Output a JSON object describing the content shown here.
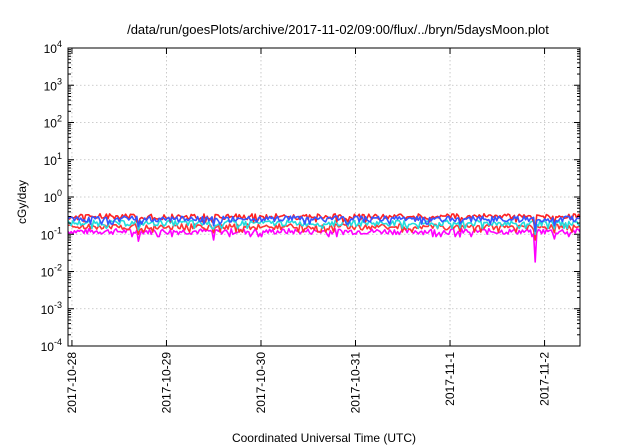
{
  "chart_data": {
    "type": "line",
    "title": "/data/run/goesPlots/archive/2017-11-02/09:00/flux/../bryn/5daysMoon.plot",
    "xlabel": "Coordinated Universal Time (UTC)",
    "ylabel": "cGy/day",
    "yscale": "log",
    "ylim": [
      0.0001,
      10000
    ],
    "yticks": [
      {
        "base": "10",
        "exp": "-4"
      },
      {
        "base": "10",
        "exp": "-3"
      },
      {
        "base": "10",
        "exp": "-2"
      },
      {
        "base": "10",
        "exp": "-1"
      },
      {
        "base": "10",
        "exp": "0"
      },
      {
        "base": "10",
        "exp": "1"
      },
      {
        "base": "10",
        "exp": "2"
      },
      {
        "base": "10",
        "exp": "3"
      },
      {
        "base": "10",
        "exp": "4"
      }
    ],
    "xlim": [
      "2017-10-27T23:00",
      "2017-11-02T09:00"
    ],
    "xticks": [
      "2017-10-28",
      "2017-10-29",
      "2017-10-30",
      "2017-10-31",
      "2017-11-1",
      "2017-11-2"
    ],
    "xtick_days": [
      0,
      1,
      2,
      3,
      4,
      5
    ],
    "grid": true,
    "legend": "none",
    "series": [
      {
        "color": "#ff00ff",
        "level": 0.12,
        "dips": [
          [
            -0.5,
            0.07
          ],
          [
            0.7,
            0.065
          ],
          [
            1.5,
            0.07
          ],
          [
            2.2,
            0.075
          ],
          [
            3.3,
            0.07
          ],
          [
            4.1,
            0.085
          ],
          [
            4.9,
            0.018
          ],
          [
            5.1,
            0.075
          ],
          [
            5.5,
            0.03
          ],
          [
            5.9,
            0.085
          ]
        ]
      },
      {
        "color": "#ff3333",
        "level": 0.16,
        "dips": [
          [
            -0.5,
            0.11
          ],
          [
            0.7,
            0.1
          ],
          [
            1.5,
            0.11
          ],
          [
            2.2,
            0.11
          ],
          [
            3.3,
            0.11
          ],
          [
            4.1,
            0.12
          ],
          [
            4.9,
            0.07
          ],
          [
            5.1,
            0.11
          ],
          [
            5.5,
            0.08
          ],
          [
            5.9,
            0.12
          ]
        ]
      },
      {
        "color": "#22dddd",
        "level": 0.2,
        "dips": [
          [
            -0.5,
            0.14
          ],
          [
            0.7,
            0.13
          ],
          [
            1.5,
            0.14
          ],
          [
            2.2,
            0.14
          ],
          [
            3.3,
            0.14
          ],
          [
            4.1,
            0.15
          ],
          [
            4.9,
            0.1
          ],
          [
            5.1,
            0.14
          ],
          [
            5.5,
            0.11
          ],
          [
            5.9,
            0.15
          ]
        ]
      },
      {
        "color": "#ff2020",
        "level": 0.3,
        "dips": [
          [
            -0.5,
            0.2
          ],
          [
            0.7,
            0.19
          ],
          [
            1.5,
            0.2
          ],
          [
            2.2,
            0.2
          ],
          [
            3.3,
            0.2
          ],
          [
            4.1,
            0.22
          ],
          [
            4.9,
            0.14
          ],
          [
            5.1,
            0.2
          ],
          [
            5.5,
            0.16
          ],
          [
            5.9,
            0.22
          ]
        ]
      },
      {
        "color": "#3355ff",
        "level": 0.26,
        "dips": [
          [
            -0.5,
            0.17
          ],
          [
            0.7,
            0.16
          ],
          [
            1.5,
            0.17
          ],
          [
            2.2,
            0.17
          ],
          [
            3.3,
            0.17
          ],
          [
            4.1,
            0.19
          ],
          [
            4.9,
            0.12
          ],
          [
            5.1,
            0.17
          ],
          [
            5.5,
            0.13
          ],
          [
            5.9,
            0.19
          ]
        ]
      }
    ]
  }
}
